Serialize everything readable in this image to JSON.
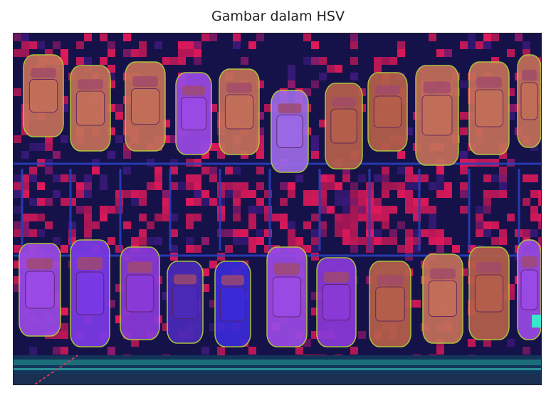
{
  "figure": {
    "title": "Gambar dalam HSV",
    "image_description_icon": "hsv-parking-lot-image",
    "colors": {
      "background_navy": "#15124a",
      "magenta": "#e0195a",
      "purple": "#6a2bd8",
      "violet": "#9b4ae6",
      "orange_car": "#c4705a",
      "yellow_green": "#b6d23a",
      "line_blue": "#2a3fb8",
      "strip_teal": "#1c6f7a"
    }
  }
}
